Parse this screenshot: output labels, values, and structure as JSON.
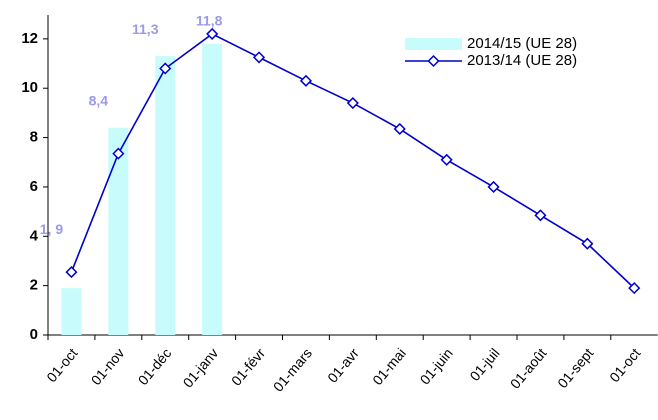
{
  "chart_data": {
    "type": "combo",
    "categories": [
      "01-oct",
      "01-nov",
      "01-déc",
      "01-janv",
      "01-févr",
      "01-mars",
      "01-avr",
      "01-mai",
      "01-juin",
      "01-juil",
      "01-août",
      "01-sept",
      "01-oct"
    ],
    "series": [
      {
        "name": "2014/15 (UE 28)",
        "type": "bar",
        "color": "#c8fcfc",
        "values": [
          1.9,
          8.4,
          11.3,
          11.8,
          null,
          null,
          null,
          null,
          null,
          null,
          null,
          null,
          null
        ],
        "value_labels": [
          "1, 9",
          "8,4",
          "11,3",
          "11,8",
          null,
          null,
          null,
          null,
          null,
          null,
          null,
          null,
          null
        ]
      },
      {
        "name": "2013/14 (UE 28)",
        "type": "line",
        "color": "#0000cc",
        "values": [
          2.55,
          7.35,
          10.8,
          12.2,
          11.25,
          10.3,
          9.4,
          8.35,
          7.1,
          6.0,
          4.85,
          3.7,
          1.9
        ]
      }
    ],
    "ylim": [
      0,
      12.4
    ],
    "yticks": [
      0,
      2,
      4,
      6,
      8,
      10,
      12
    ],
    "legend": "top-right"
  }
}
